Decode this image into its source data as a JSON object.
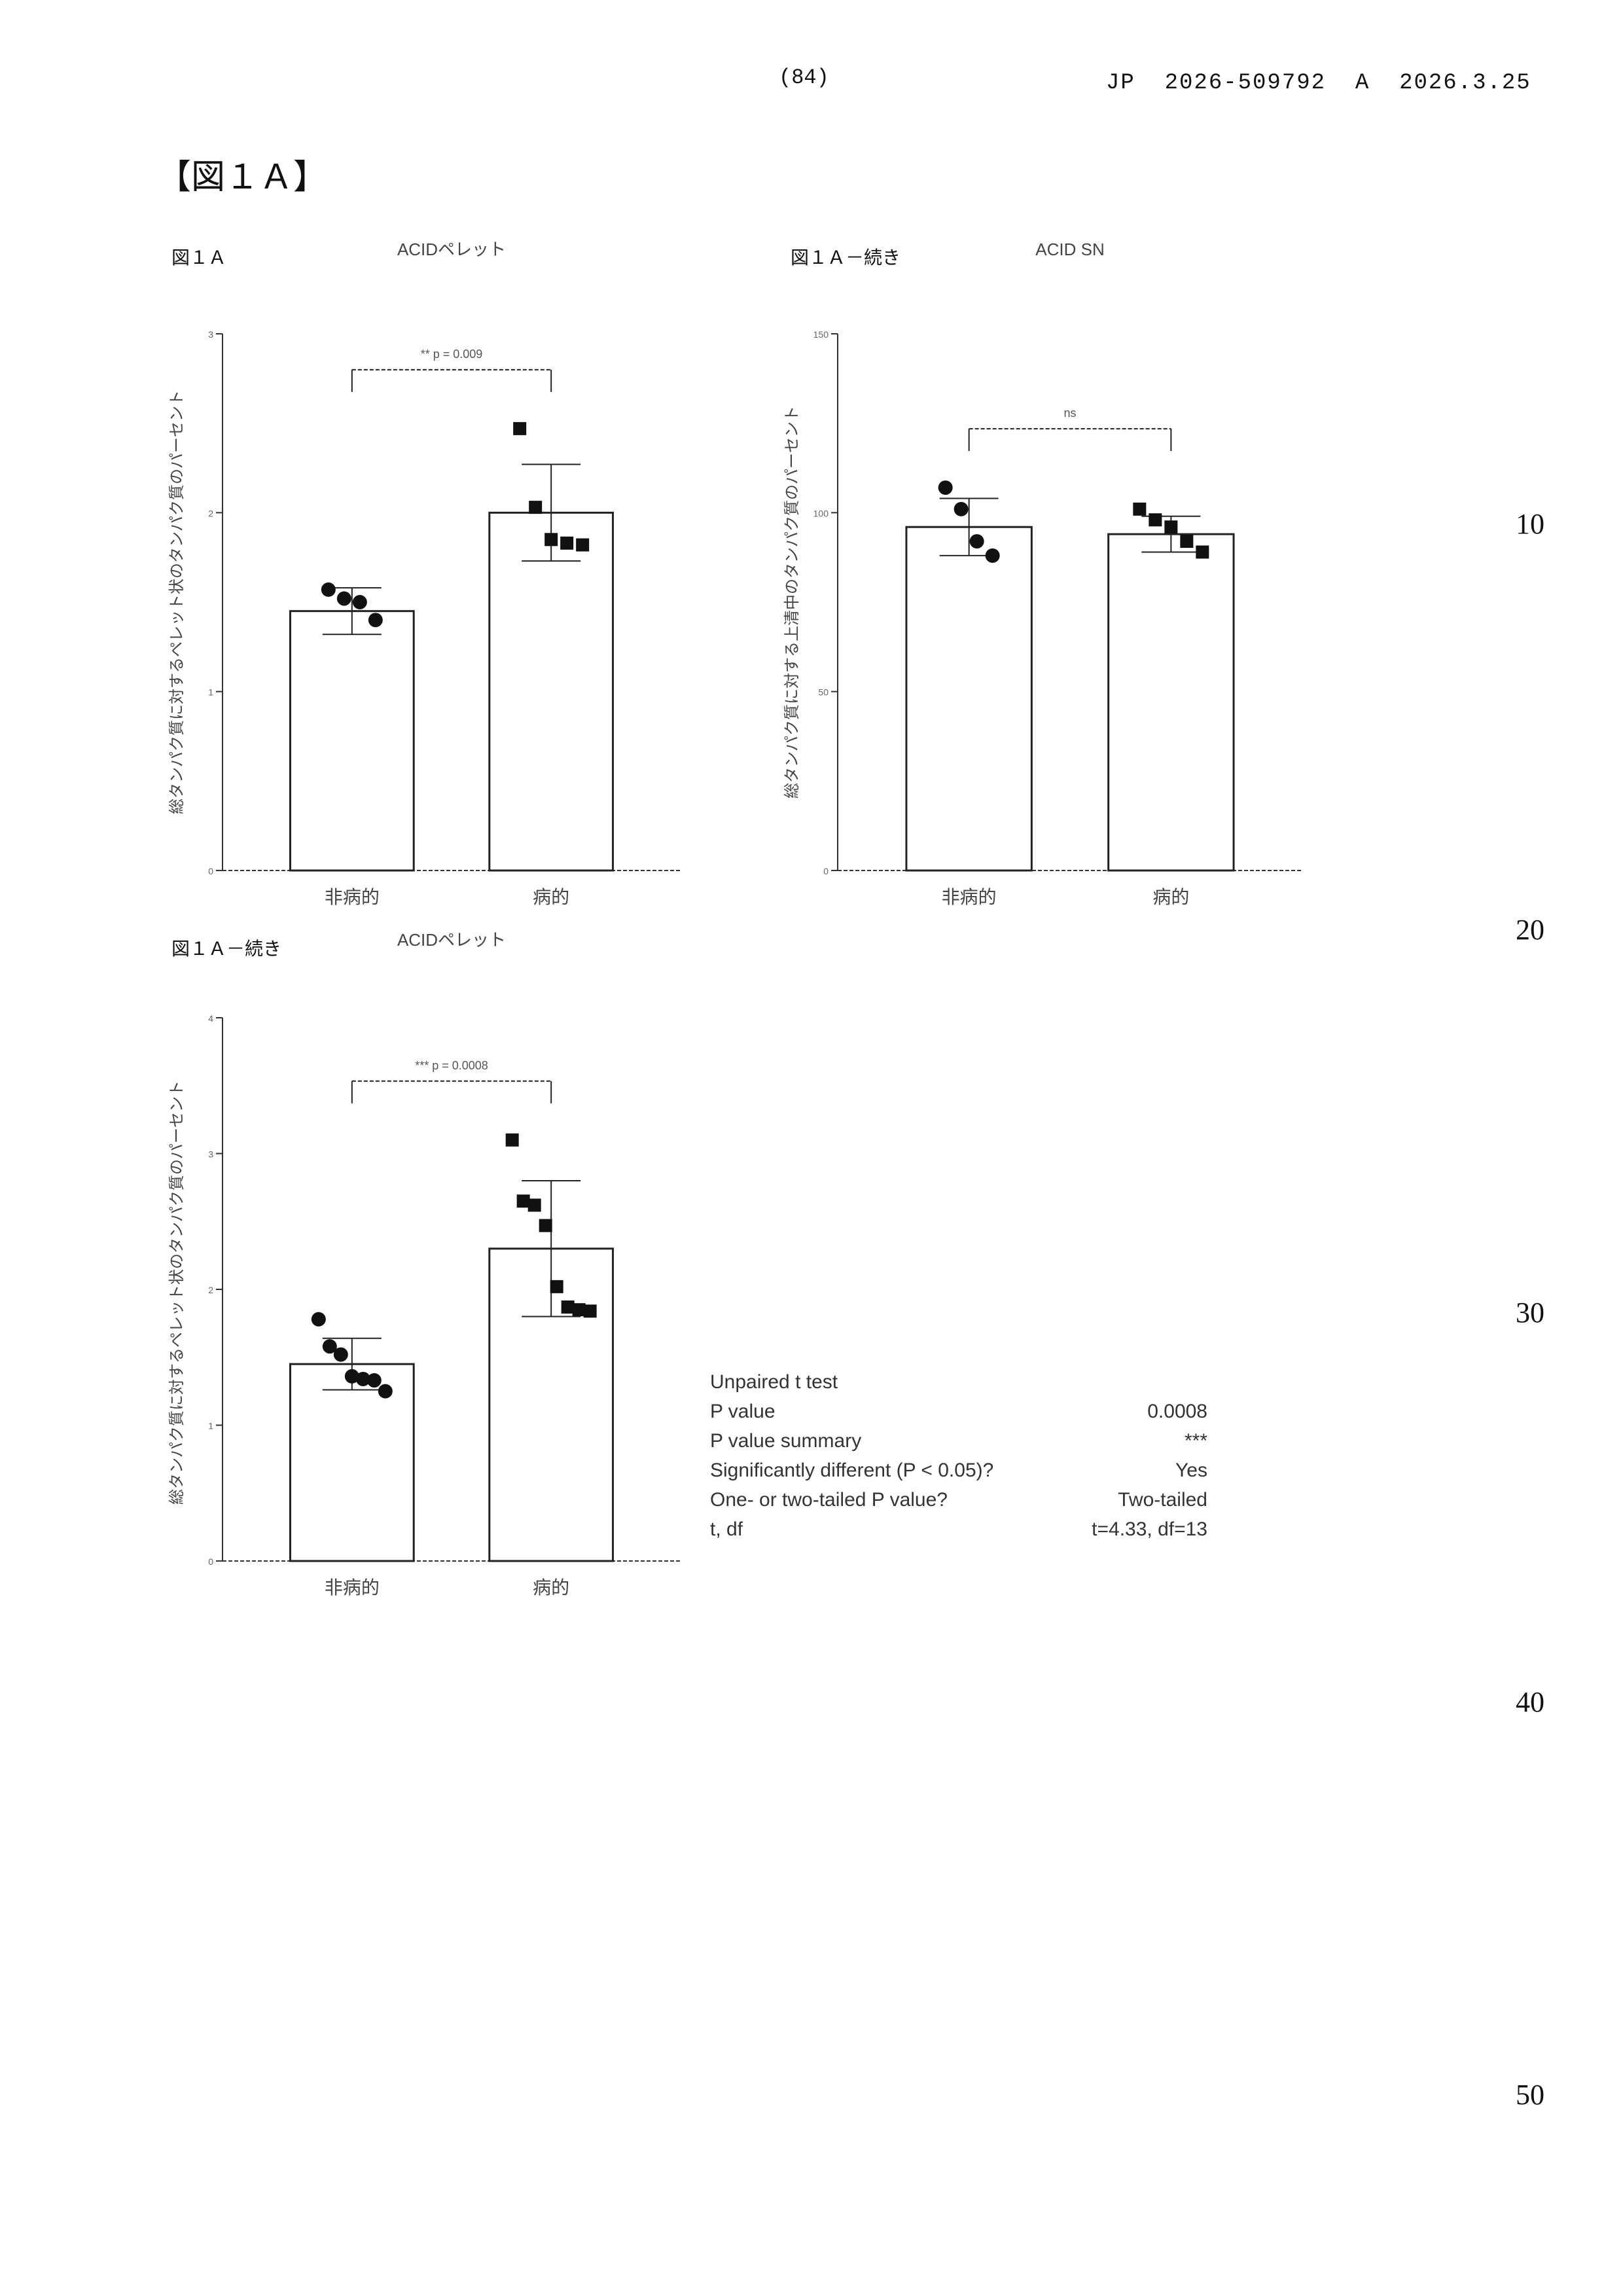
{
  "header": {
    "page_number": "(84)",
    "publication": "JP  2026-509792  A  2026.3.25"
  },
  "figure_heading": "【図１Ａ】",
  "line_numbers": [
    "10",
    "20",
    "30",
    "40",
    "50"
  ],
  "chart_data": [
    {
      "type": "bar",
      "panel_label": "図１Ａ",
      "title": "ACIDペレット",
      "ylabel": "総タンパク質に対するペレット状のタンパク質のパーセント",
      "categories": [
        "非病的",
        "病的"
      ],
      "values": [
        1.45,
        2.0
      ],
      "error": [
        0.13,
        0.27
      ],
      "points": [
        [
          1.57,
          1.52,
          1.5,
          1.4
        ],
        [
          2.47,
          2.03,
          1.85,
          1.83,
          1.82
        ]
      ],
      "markers": [
        "circle",
        "square"
      ],
      "ylim": [
        0,
        3
      ],
      "yticks": [
        0,
        1,
        2,
        3
      ],
      "significance": "** p = 0.009"
    },
    {
      "type": "bar",
      "panel_label": "図１Ａ－続き",
      "title": "ACID SN",
      "ylabel": "総タンパク質に対する上清中のタンパク質のパーセント",
      "categories": [
        "非病的",
        "病的"
      ],
      "values": [
        96,
        94
      ],
      "error": [
        8,
        5
      ],
      "points": [
        [
          107,
          101,
          92,
          88
        ],
        [
          101,
          98,
          96,
          92,
          89
        ]
      ],
      "markers": [
        "circle",
        "square"
      ],
      "ylim": [
        0,
        150
      ],
      "yticks": [
        0,
        50,
        100,
        150
      ],
      "significance": "ns"
    },
    {
      "type": "bar",
      "panel_label": "図１Ａ－続き",
      "title": "ACIDペレット",
      "ylabel": "総タンパク質に対するペレット状のタンパク質のパーセント",
      "categories": [
        "非病的",
        "病的"
      ],
      "values": [
        1.45,
        2.3
      ],
      "error": [
        0.19,
        0.5
      ],
      "points": [
        [
          1.78,
          1.58,
          1.52,
          1.36,
          1.34,
          1.33,
          1.25
        ],
        [
          3.1,
          2.65,
          2.62,
          2.47,
          2.02,
          1.87,
          1.85,
          1.84
        ]
      ],
      "markers": [
        "circle",
        "square"
      ],
      "ylim": [
        0,
        4
      ],
      "yticks": [
        0,
        1,
        2,
        3,
        4
      ],
      "significance": "*** p = 0.0008"
    }
  ],
  "stats_table": {
    "title": "Unpaired t test",
    "rows": [
      {
        "label": "P value",
        "value": "0.0008"
      },
      {
        "label": "P value summary",
        "value": "***"
      },
      {
        "label": "Significantly different (P < 0.05)?",
        "value": "Yes"
      },
      {
        "label": "One- or two-tailed P value?",
        "value": "Two-tailed"
      },
      {
        "label": "t, df",
        "value": "t=4.33, df=13"
      }
    ]
  }
}
